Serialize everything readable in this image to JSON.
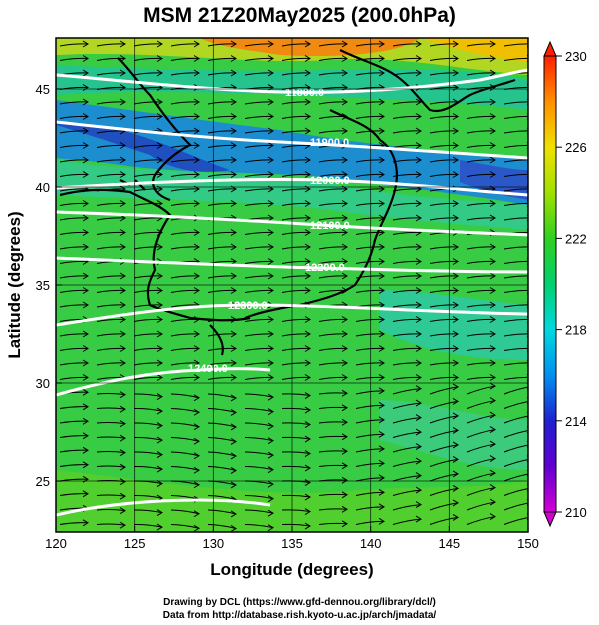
{
  "title": "MSM 21Z20May2025 (200.0hPa)",
  "x_axis": {
    "label": "Longitude (degrees)",
    "range": [
      120,
      150
    ],
    "ticks": [
      120,
      125,
      130,
      135,
      140,
      145,
      150
    ]
  },
  "y_axis": {
    "label": "Latitude  (degrees)",
    "range": [
      22.4,
      47.6
    ],
    "ticks": [
      25,
      30,
      35,
      40,
      45
    ]
  },
  "colorbar": {
    "range": [
      210,
      230
    ],
    "ticks": [
      210,
      214,
      218,
      222,
      226,
      230
    ],
    "colors": [
      "#d400d4",
      "#2020d0",
      "#00c8f0",
      "#00d040",
      "#c8e000",
      "#ff2000"
    ]
  },
  "contours": [
    {
      "label": "11800.0",
      "value": 11800
    },
    {
      "label": "11900.0",
      "value": 11900
    },
    {
      "label": "12000.0",
      "value": 12000
    },
    {
      "label": "12100.0",
      "value": 12100
    },
    {
      "label": "12200.0",
      "value": 12200
    },
    {
      "label": "12300.0",
      "value": 12300
    },
    {
      "label": "12400.0",
      "value": 12400
    }
  ],
  "credits": {
    "line1": "Drawing by DCL (https://www.gfd-dennou.org/library/dcl/)",
    "line2": "Data from http://database.rish.kyoto-u.ac.jp/arch/jmadata/"
  }
}
